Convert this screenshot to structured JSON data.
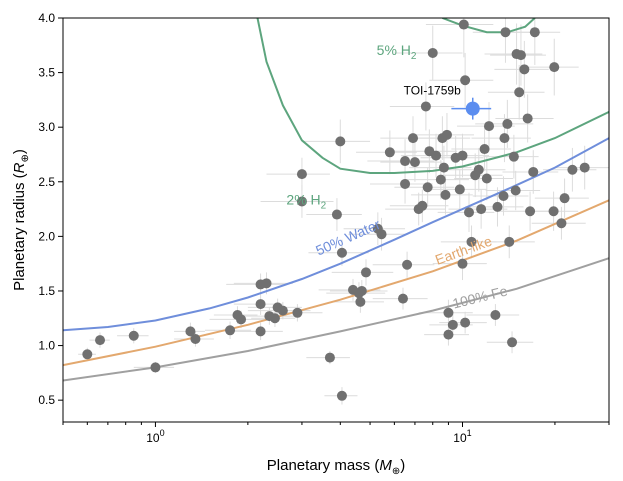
{
  "chart_data": {
    "type": "scatter",
    "xlabel_main": "Planetary mass (",
    "xlabel_sym": "M",
    "xlabel_sub": "⊕",
    "xlabel_end": ")",
    "ylabel_main": "Planetary radius (",
    "ylabel_sym": "R",
    "ylabel_sub": "⊕",
    "ylabel_end": ")",
    "xscale": "log",
    "xlim": [
      0.5,
      30
    ],
    "ylim": [
      0.3,
      4.0
    ],
    "xticks": [
      {
        "value": 1,
        "label": "10",
        "exp": "0"
      },
      {
        "value": 10,
        "label": "10",
        "exp": "1"
      }
    ],
    "yticks": [
      0.5,
      1.0,
      1.5,
      2.0,
      2.5,
      3.0,
      3.5,
      4.0
    ],
    "ytick_labels": [
      "0.5",
      "1.0",
      "1.5",
      "2.0",
      "2.5",
      "3.0",
      "3.5",
      "4.0"
    ],
    "highlight": {
      "name": "TOI-1759b",
      "x": 10.8,
      "y": 3.17,
      "xerr": 1.6,
      "yerr": 0.1,
      "color": "#5b8def"
    },
    "curves": [
      {
        "label": "100% Fe",
        "color": "#a0a0a0",
        "points": [
          [
            0.5,
            0.68
          ],
          [
            1,
            0.8
          ],
          [
            2,
            0.95
          ],
          [
            4,
            1.13
          ],
          [
            8,
            1.32
          ],
          [
            15,
            1.52
          ],
          [
            30,
            1.8
          ]
        ]
      },
      {
        "label": "Earth-like",
        "color": "#e3a86e",
        "points": [
          [
            0.5,
            0.82
          ],
          [
            1,
            0.99
          ],
          [
            2,
            1.19
          ],
          [
            4,
            1.42
          ],
          [
            8,
            1.68
          ],
          [
            15,
            1.96
          ],
          [
            30,
            2.33
          ]
        ]
      },
      {
        "label": "50% Water",
        "color": "#6f8edb",
        "points": [
          [
            0.5,
            1.14
          ],
          [
            0.7,
            1.17
          ],
          [
            1,
            1.23
          ],
          [
            1.5,
            1.34
          ],
          [
            2,
            1.44
          ],
          [
            3,
            1.61
          ],
          [
            4,
            1.75
          ],
          [
            6,
            1.97
          ],
          [
            8,
            2.13
          ],
          [
            10,
            2.25
          ],
          [
            15,
            2.47
          ],
          [
            20,
            2.63
          ],
          [
            30,
            2.9
          ]
        ]
      },
      {
        "label": "2% H",
        "label_sub": "2",
        "color": "#5da57e",
        "points": [
          [
            2.15,
            4.0
          ],
          [
            2.3,
            3.6
          ],
          [
            2.6,
            3.2
          ],
          [
            3,
            2.88
          ],
          [
            3.5,
            2.72
          ],
          [
            4,
            2.62
          ],
          [
            5,
            2.58
          ],
          [
            6,
            2.58
          ],
          [
            8,
            2.6
          ],
          [
            10,
            2.64
          ],
          [
            15,
            2.77
          ],
          [
            20,
            2.9
          ],
          [
            30,
            3.14
          ]
        ]
      },
      {
        "label": "5% H",
        "label_sub": "2",
        "color": "#5da57e",
        "points": [
          [
            8.6,
            4.0
          ],
          [
            10,
            3.93
          ],
          [
            12,
            3.87
          ],
          [
            14,
            3.87
          ],
          [
            16,
            3.92
          ],
          [
            17.2,
            4.0
          ]
        ]
      }
    ],
    "curve_label_positions": [
      {
        "label": "100% Fe",
        "x": 11.5,
        "y": 1.4,
        "angle": -14
      },
      {
        "label": "Earth-like",
        "x": 10.2,
        "y": 1.83,
        "angle": -20
      },
      {
        "label": "50% Water",
        "x": 4.3,
        "y": 1.95,
        "angle": -24
      },
      {
        "label": "2% H",
        "label_sub": "2",
        "x": 3.1,
        "y": 2.29,
        "angle": 0
      },
      {
        "label": "5% H",
        "label_sub": "2",
        "x": 6.1,
        "y": 3.66,
        "angle": 0
      }
    ],
    "points": [
      {
        "x": 0.6,
        "y": 0.92,
        "xe": 0.04,
        "ye": 0.06
      },
      {
        "x": 0.66,
        "y": 1.05,
        "xe": 0.05,
        "ye": 0.07
      },
      {
        "x": 0.85,
        "y": 1.09,
        "xe": 0.1,
        "ye": 0.07
      },
      {
        "x": 1.0,
        "y": 0.8,
        "xe": 0.15,
        "ye": 0.05
      },
      {
        "x": 1.3,
        "y": 1.13,
        "xe": 0.15,
        "ye": 0.08
      },
      {
        "x": 1.35,
        "y": 1.06,
        "xe": 0.2,
        "ye": 0.07
      },
      {
        "x": 1.75,
        "y": 1.14,
        "xe": 0.3,
        "ye": 0.08
      },
      {
        "x": 1.85,
        "y": 1.28,
        "xe": 0.3,
        "ye": 0.08
      },
      {
        "x": 1.9,
        "y": 1.24,
        "xe": 0.4,
        "ye": 0.08
      },
      {
        "x": 2.2,
        "y": 1.56,
        "xe": 0.5,
        "ye": 0.1
      },
      {
        "x": 2.3,
        "y": 1.57,
        "xe": 0.5,
        "ye": 0.1
      },
      {
        "x": 2.2,
        "y": 1.38,
        "xe": 0.4,
        "ye": 0.1
      },
      {
        "x": 2.2,
        "y": 1.13,
        "xe": 0.4,
        "ye": 0.08
      },
      {
        "x": 2.35,
        "y": 1.27,
        "xe": 0.5,
        "ye": 0.08
      },
      {
        "x": 2.5,
        "y": 1.35,
        "xe": 0.5,
        "ye": 0.08
      },
      {
        "x": 2.6,
        "y": 1.32,
        "xe": 0.6,
        "ye": 0.08
      },
      {
        "x": 2.9,
        "y": 1.3,
        "xe": 0.6,
        "ye": 0.08
      },
      {
        "x": 2.45,
        "y": 1.25,
        "xe": 0.4,
        "ye": 0.08
      },
      {
        "x": 3.0,
        "y": 2.32,
        "xe": 0.8,
        "ye": 0.15
      },
      {
        "x": 3.0,
        "y": 2.57,
        "xe": 0.7,
        "ye": 0.15
      },
      {
        "x": 3.7,
        "y": 0.89,
        "xe": 0.6,
        "ye": 0.06
      },
      {
        "x": 3.9,
        "y": 2.2,
        "xe": 0.8,
        "ye": 0.15
      },
      {
        "x": 4.0,
        "y": 2.87,
        "xe": 1.0,
        "ye": 0.2
      },
      {
        "x": 4.05,
        "y": 1.85,
        "xe": 0.9,
        "ye": 0.12
      },
      {
        "x": 4.05,
        "y": 0.54,
        "xe": 0.5,
        "ye": 0.08
      },
      {
        "x": 4.4,
        "y": 1.51,
        "xe": 1.0,
        "ye": 0.1
      },
      {
        "x": 4.6,
        "y": 1.48,
        "xe": 1.0,
        "ye": 0.1
      },
      {
        "x": 4.65,
        "y": 1.4,
        "xe": 0.9,
        "ye": 0.1
      },
      {
        "x": 4.7,
        "y": 1.5,
        "xe": 1.0,
        "ye": 0.1
      },
      {
        "x": 4.85,
        "y": 1.67,
        "xe": 1.1,
        "ye": 0.12
      },
      {
        "x": 5.3,
        "y": 2.07,
        "xe": 1.2,
        "ye": 0.15
      },
      {
        "x": 5.45,
        "y": 2.02,
        "xe": 1.2,
        "ye": 0.15
      },
      {
        "x": 5.8,
        "y": 2.77,
        "xe": 1.3,
        "ye": 0.2
      },
      {
        "x": 6.4,
        "y": 1.43,
        "xe": 1.3,
        "ye": 0.1
      },
      {
        "x": 6.6,
        "y": 1.74,
        "xe": 1.5,
        "ye": 0.12
      },
      {
        "x": 6.5,
        "y": 2.69,
        "xe": 1.6,
        "ye": 0.2
      },
      {
        "x": 6.5,
        "y": 2.48,
        "xe": 1.5,
        "ye": 0.18
      },
      {
        "x": 6.9,
        "y": 2.9,
        "xe": 1.5,
        "ye": 0.2
      },
      {
        "x": 7.0,
        "y": 2.68,
        "xe": 1.6,
        "ye": 0.18
      },
      {
        "x": 7.2,
        "y": 2.25,
        "xe": 1.6,
        "ye": 0.15
      },
      {
        "x": 7.4,
        "y": 2.28,
        "xe": 1.6,
        "ye": 0.15
      },
      {
        "x": 7.6,
        "y": 3.19,
        "xe": 1.8,
        "ye": 0.22
      },
      {
        "x": 7.7,
        "y": 2.45,
        "xe": 1.7,
        "ye": 0.18
      },
      {
        "x": 7.8,
        "y": 2.78,
        "xe": 1.8,
        "ye": 0.2
      },
      {
        "x": 8.0,
        "y": 3.68,
        "xe": 2.0,
        "ye": 0.25
      },
      {
        "x": 8.2,
        "y": 2.74,
        "xe": 1.9,
        "ye": 0.2
      },
      {
        "x": 8.5,
        "y": 2.52,
        "xe": 2.0,
        "ye": 0.18
      },
      {
        "x": 8.6,
        "y": 2.9,
        "xe": 2.0,
        "ye": 0.2
      },
      {
        "x": 8.7,
        "y": 2.63,
        "xe": 2.0,
        "ye": 0.2
      },
      {
        "x": 8.8,
        "y": 2.38,
        "xe": 2.0,
        "ye": 0.18
      },
      {
        "x": 8.9,
        "y": 2.93,
        "xe": 2.0,
        "ye": 0.2
      },
      {
        "x": 9.0,
        "y": 1.1,
        "xe": 1.5,
        "ye": 0.1
      },
      {
        "x": 9.0,
        "y": 1.3,
        "xe": 1.8,
        "ye": 0.12
      },
      {
        "x": 9.3,
        "y": 1.19,
        "xe": 1.5,
        "ye": 0.1
      },
      {
        "x": 9.5,
        "y": 2.72,
        "xe": 2.2,
        "ye": 0.2
      },
      {
        "x": 9.8,
        "y": 2.43,
        "xe": 2.2,
        "ye": 0.18
      },
      {
        "x": 10.0,
        "y": 1.75,
        "xe": 2.0,
        "ye": 0.15
      },
      {
        "x": 10.2,
        "y": 1.21,
        "xe": 1.8,
        "ye": 0.1
      },
      {
        "x": 10.0,
        "y": 2.74,
        "xe": 2.2,
        "ye": 0.2
      },
      {
        "x": 10.2,
        "y": 3.43,
        "xe": 2.4,
        "ye": 0.25
      },
      {
        "x": 10.1,
        "y": 3.94,
        "xe": 2.5,
        "ye": 0.3
      },
      {
        "x": 10.5,
        "y": 2.22,
        "xe": 2.2,
        "ye": 0.18
      },
      {
        "x": 10.7,
        "y": 1.95,
        "xe": 2.2,
        "ye": 0.15
      },
      {
        "x": 11.0,
        "y": 2.56,
        "xe": 2.5,
        "ye": 0.2
      },
      {
        "x": 11.3,
        "y": 2.61,
        "xe": 2.5,
        "ye": 0.2
      },
      {
        "x": 11.5,
        "y": 2.25,
        "xe": 2.5,
        "ye": 0.18
      },
      {
        "x": 11.8,
        "y": 2.8,
        "xe": 2.6,
        "ye": 0.2
      },
      {
        "x": 12.0,
        "y": 2.53,
        "xe": 2.6,
        "ye": 0.2
      },
      {
        "x": 12.2,
        "y": 3.01,
        "xe": 2.6,
        "ye": 0.22
      },
      {
        "x": 12.8,
        "y": 1.28,
        "xe": 2.5,
        "ye": 0.1
      },
      {
        "x": 13.0,
        "y": 2.27,
        "xe": 2.8,
        "ye": 0.18
      },
      {
        "x": 13.6,
        "y": 2.37,
        "xe": 2.8,
        "ye": 0.18
      },
      {
        "x": 13.7,
        "y": 2.9,
        "xe": 3.0,
        "ye": 0.22
      },
      {
        "x": 14.0,
        "y": 3.03,
        "xe": 3.0,
        "ye": 0.22
      },
      {
        "x": 13.8,
        "y": 3.87,
        "xe": 3.0,
        "ye": 0.28
      },
      {
        "x": 14.2,
        "y": 1.95,
        "xe": 3.0,
        "ye": 0.15
      },
      {
        "x": 14.5,
        "y": 1.03,
        "xe": 2.5,
        "ye": 0.1
      },
      {
        "x": 14.7,
        "y": 2.73,
        "xe": 3.0,
        "ye": 0.2
      },
      {
        "x": 14.9,
        "y": 2.42,
        "xe": 3.0,
        "ye": 0.18
      },
      {
        "x": 15.0,
        "y": 3.67,
        "xe": 3.2,
        "ye": 0.28
      },
      {
        "x": 15.3,
        "y": 3.32,
        "xe": 3.2,
        "ye": 0.25
      },
      {
        "x": 15.5,
        "y": 3.66,
        "xe": 3.2,
        "ye": 0.28
      },
      {
        "x": 15.9,
        "y": 3.53,
        "xe": 3.2,
        "ye": 0.26
      },
      {
        "x": 16.3,
        "y": 3.08,
        "xe": 3.5,
        "ye": 0.22
      },
      {
        "x": 16.6,
        "y": 2.23,
        "xe": 3.5,
        "ye": 0.18
      },
      {
        "x": 17.0,
        "y": 2.59,
        "xe": 3.5,
        "ye": 0.2
      },
      {
        "x": 17.2,
        "y": 3.87,
        "xe": 3.6,
        "ye": 0.3
      },
      {
        "x": 19.8,
        "y": 2.23,
        "xe": 4.0,
        "ye": 0.18
      },
      {
        "x": 19.9,
        "y": 3.55,
        "xe": 4.0,
        "ye": 0.26
      },
      {
        "x": 21.0,
        "y": 2.12,
        "xe": 4.2,
        "ye": 0.15
      },
      {
        "x": 21.5,
        "y": 2.35,
        "xe": 4.3,
        "ye": 0.18
      },
      {
        "x": 22.8,
        "y": 2.61,
        "xe": 4.5,
        "ye": 0.2
      },
      {
        "x": 25.0,
        "y": 2.63,
        "xe": 5.0,
        "ye": 0.2
      }
    ]
  }
}
